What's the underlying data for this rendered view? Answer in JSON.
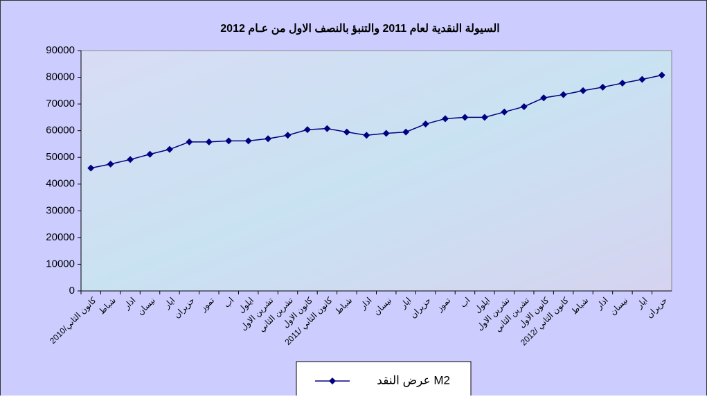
{
  "chart_data": {
    "type": "line",
    "title": "السيولة النقدية لعام 2011 والتنبؤ  بالنصف الاول من عـام 2012",
    "categories": [
      "كانون الثاني/2010",
      "شباط",
      "اذار",
      "نيسان",
      "ايار",
      "حزيران",
      "تموز",
      "اب",
      "ايلول",
      "تشرين الاول",
      "تشرين الثاني",
      "كانون الاول",
      "كانون الثاني /2011",
      "شباط",
      "اذار",
      "نيسان",
      "ايار",
      "حزيران",
      "تموز",
      "اب",
      "ايلول",
      "تشرين الاول",
      "تشرين الثاني",
      "كانون الاول",
      "كانون الثاني /2012",
      "شباط",
      "اذار",
      "نيسان",
      "ايار",
      "حزيران"
    ],
    "series": [
      {
        "name": "عرض النقد M2",
        "color": "#000080",
        "values": [
          46000,
          47500,
          49200,
          51200,
          53000,
          55800,
          55800,
          56200,
          56200,
          57000,
          58300,
          60400,
          60800,
          59500,
          58300,
          59000,
          59500,
          62500,
          64500,
          65000,
          65000,
          67000,
          69000,
          72300,
          73500,
          75000,
          76300,
          77800,
          79200,
          80800
        ]
      }
    ],
    "ylim": [
      0,
      90000
    ],
    "yticks": [
      0,
      10000,
      20000,
      30000,
      40000,
      50000,
      60000,
      70000,
      80000,
      90000
    ],
    "grid": false
  }
}
